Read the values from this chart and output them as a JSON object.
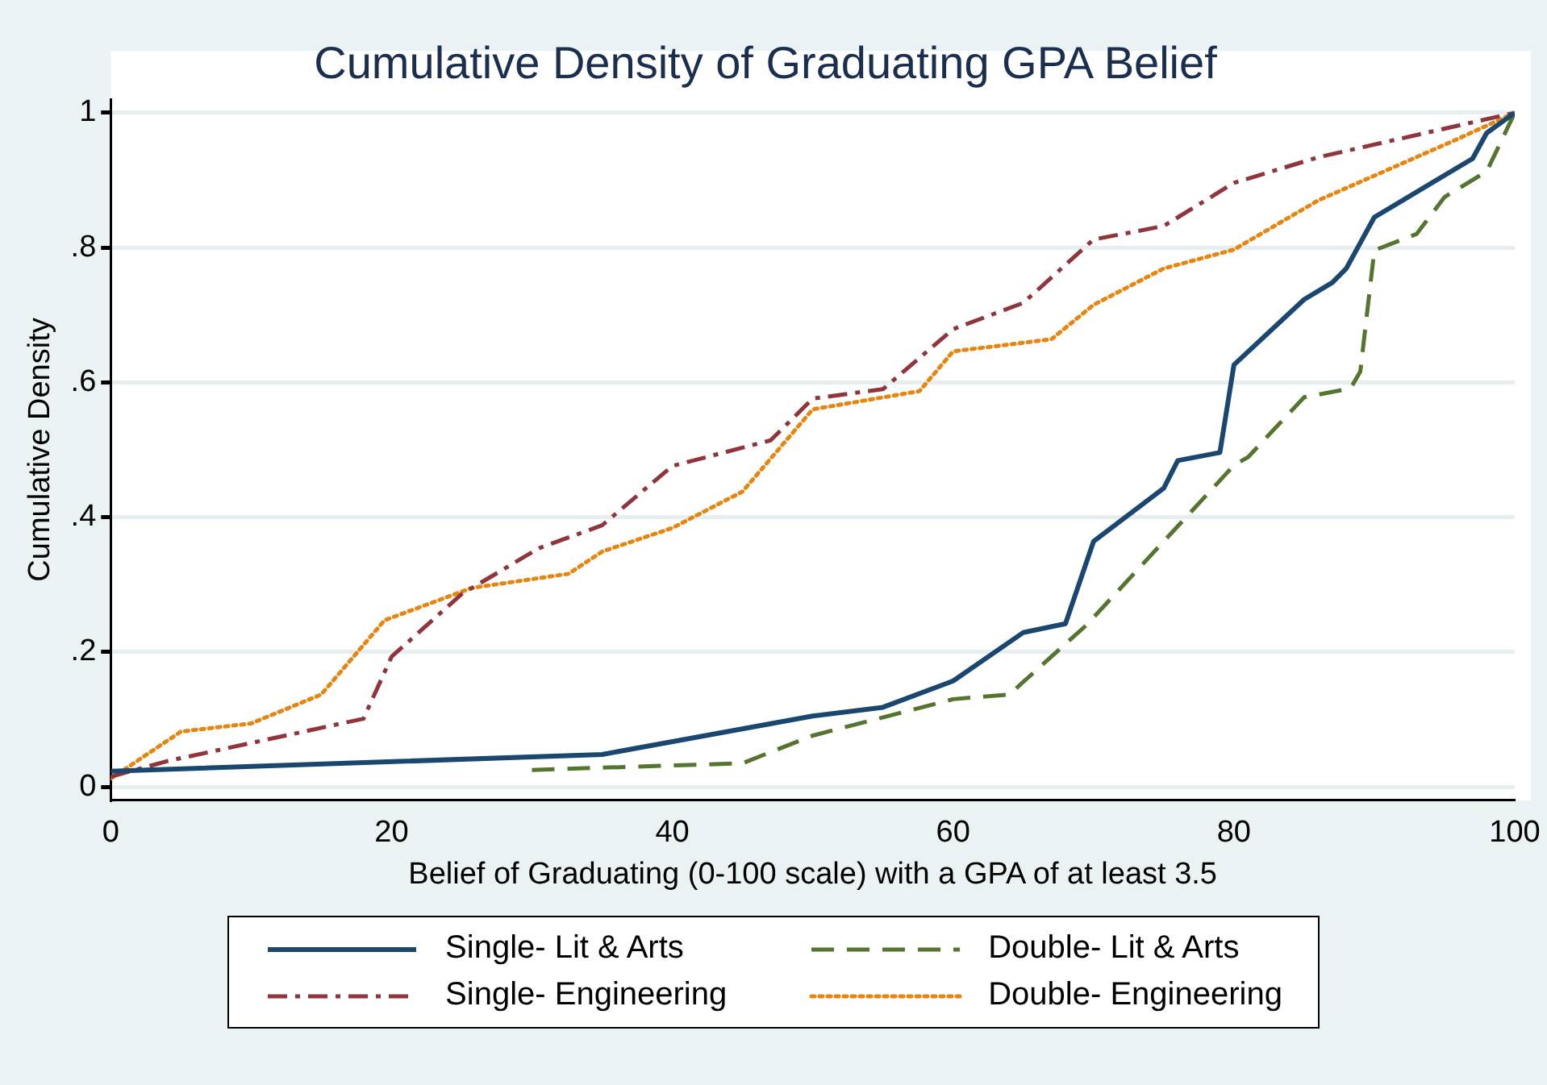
{
  "chart_data": {
    "type": "line",
    "title": "Cumulative Density of Graduating GPA Belief",
    "xlabel": "Belief of Graduating (0-100 scale) with a GPA of at least 3.5",
    "ylabel": "Cumulative Density",
    "xlim": [
      0,
      100
    ],
    "xticks": [
      0,
      20,
      40,
      60,
      80,
      100
    ],
    "ylim": [
      -0.02,
      1.02
    ],
    "yticks": [
      0,
      {
        "value": 0.2,
        "label": ".2"
      },
      {
        "value": 0.4,
        "label": ".4"
      },
      {
        "value": 0.6,
        "label": ".6"
      },
      {
        "value": 0.8,
        "label": ".8"
      },
      1
    ],
    "grid": "y",
    "legend": "bottom",
    "marker": "none",
    "series": [
      {
        "name": "Single- Lit & Arts",
        "color": "#1a476f",
        "line_style": "solid",
        "x": [
          0,
          35,
          50,
          55,
          60,
          65,
          68,
          70,
          75,
          76,
          79,
          80,
          85,
          87,
          88,
          90,
          97,
          98,
          100
        ],
        "values": [
          0.023,
          0.048,
          0.105,
          0.118,
          0.157,
          0.229,
          0.242,
          0.364,
          0.443,
          0.484,
          0.496,
          0.626,
          0.723,
          0.748,
          0.769,
          0.845,
          0.932,
          0.97,
          1
        ]
      },
      {
        "name": "Double- Lit & Arts",
        "color": "#55752f",
        "line_style": "dashed",
        "x": [
          30,
          45,
          50,
          60,
          64,
          69.5,
          80,
          81,
          85,
          88.3,
          89,
          90,
          93,
          95,
          98,
          100
        ],
        "values": [
          0.025,
          0.035,
          0.076,
          0.13,
          0.137,
          0.24,
          0.477,
          0.489,
          0.578,
          0.591,
          0.616,
          0.796,
          0.82,
          0.875,
          0.913,
          1
        ]
      },
      {
        "name": "Single- Engineering",
        "color": "#90353b",
        "line_style": "dashdot",
        "x": [
          0,
          4,
          18,
          20,
          25,
          30.5,
          35,
          40,
          47,
          50,
          55,
          60,
          65,
          70,
          75,
          80,
          86,
          100
        ],
        "values": [
          0.015,
          0.038,
          0.101,
          0.193,
          0.286,
          0.354,
          0.388,
          0.476,
          0.514,
          0.576,
          0.59,
          0.679,
          0.718,
          0.812,
          0.832,
          0.896,
          0.934,
          1
        ]
      },
      {
        "name": "Double- Engineering",
        "color": "#e8850f",
        "line_style": "dotted",
        "x": [
          0,
          5,
          10,
          15,
          19.5,
          25.7,
          32.6,
          35,
          40,
          45,
          50,
          57.6,
          60,
          67,
          70,
          75,
          80,
          86,
          95.7,
          100
        ],
        "values": [
          0.012,
          0.082,
          0.094,
          0.137,
          0.247,
          0.295,
          0.316,
          0.349,
          0.384,
          0.438,
          0.56,
          0.587,
          0.646,
          0.664,
          0.715,
          0.769,
          0.797,
          0.87,
          0.959,
          1
        ]
      }
    ]
  }
}
